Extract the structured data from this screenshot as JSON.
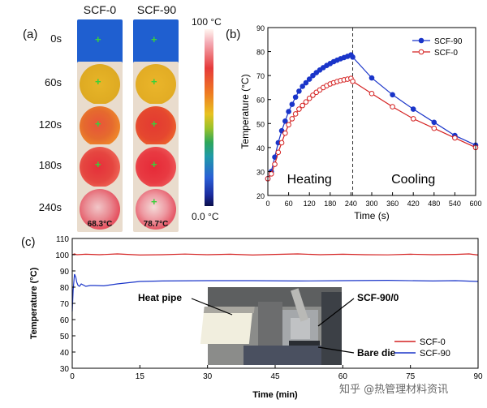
{
  "panel_a": {
    "label": "(a)",
    "columns": [
      "SCF-0",
      "SCF-90"
    ],
    "rows": [
      "0s",
      "60s",
      "120s",
      "180s",
      "240s"
    ],
    "final_temps": [
      "68.3°C",
      "78.7°C"
    ],
    "colorbar": {
      "max_label": "100 °C",
      "min_label": "0.0 °C"
    }
  },
  "chart_data": [
    {
      "id": "b",
      "panel_label": "(b)",
      "type": "line",
      "xlabel": "Time (s)",
      "ylabel": "Temperature (°C)",
      "xlim": [
        0,
        600
      ],
      "ylim": [
        20,
        90
      ],
      "xticks": [
        0,
        60,
        120,
        180,
        240,
        300,
        360,
        420,
        480,
        540,
        600
      ],
      "yticks": [
        20,
        30,
        40,
        50,
        60,
        70,
        80,
        90
      ],
      "legend": "top-right",
      "phase_divider_x": 245,
      "phase_labels": [
        "Heating",
        "Cooling"
      ],
      "series": [
        {
          "name": "SCF-90",
          "color": "#1a35c9",
          "marker": "filled",
          "x": [
            0,
            10,
            20,
            30,
            40,
            50,
            60,
            70,
            80,
            90,
            100,
            110,
            120,
            130,
            140,
            150,
            160,
            170,
            180,
            190,
            200,
            210,
            220,
            230,
            240,
            245,
            300,
            360,
            420,
            480,
            540,
            600
          ],
          "y": [
            27,
            30,
            36,
            42,
            47,
            51,
            55,
            58,
            61,
            63.5,
            65.5,
            67,
            68.5,
            70,
            71.2,
            72.3,
            73.3,
            74.2,
            75,
            75.8,
            76.4,
            77,
            77.5,
            78,
            78.6,
            77.7,
            69,
            62,
            56,
            50.5,
            45,
            41
          ]
        },
        {
          "name": "SCF-0",
          "color": "#d42020",
          "marker": "open",
          "x": [
            0,
            10,
            20,
            30,
            40,
            50,
            60,
            70,
            80,
            90,
            100,
            110,
            120,
            130,
            140,
            150,
            160,
            170,
            180,
            190,
            200,
            210,
            220,
            230,
            240,
            245,
            300,
            360,
            420,
            480,
            540,
            600
          ],
          "y": [
            27,
            29,
            33,
            38,
            42,
            46,
            49.5,
            52,
            54,
            56,
            57.5,
            59,
            60.5,
            61.8,
            63,
            64,
            65,
            65.8,
            66.5,
            67,
            67.5,
            67.9,
            68.2,
            68.5,
            68.8,
            67.6,
            62.5,
            57,
            52,
            48,
            44,
            40
          ]
        }
      ]
    },
    {
      "id": "c",
      "panel_label": "(c)",
      "type": "line",
      "xlabel": "Time (min)",
      "ylabel": "Temperature (°C)",
      "xlim": [
        0,
        90
      ],
      "ylim": [
        30,
        110
      ],
      "xticks": [
        0,
        15,
        30,
        45,
        60,
        75,
        90
      ],
      "yticks": [
        30,
        40,
        50,
        60,
        70,
        80,
        90,
        100,
        110
      ],
      "legend": "bottom-right",
      "series": [
        {
          "name": "SCF-0",
          "color": "#d42020",
          "x": [
            0,
            0.5,
            1,
            3,
            6,
            10,
            15,
            20,
            25,
            30,
            35,
            40,
            45,
            50,
            55,
            60,
            65,
            70,
            75,
            80,
            85,
            88,
            90
          ],
          "y": [
            100,
            100.5,
            100,
            100.3,
            100,
            100.5,
            99.8,
            100,
            100.4,
            100,
            100.3,
            99.8,
            100.2,
            100.5,
            100,
            100.3,
            100,
            99.9,
            100.3,
            100,
            100.2,
            100.5,
            99.8
          ]
        },
        {
          "name": "SCF-90",
          "color": "#1a35c9",
          "x": [
            0,
            0.2,
            0.5,
            0.8,
            1,
            1.3,
            1.6,
            2,
            3,
            4,
            5,
            7,
            10,
            15,
            20,
            30,
            40,
            50,
            60,
            70,
            80,
            85,
            90
          ],
          "y": [
            65,
            78,
            88,
            86,
            83,
            81,
            80.5,
            82,
            80.5,
            81,
            81,
            80.8,
            82,
            83.5,
            83.8,
            84,
            84,
            83.8,
            84,
            84.2,
            83.8,
            84,
            83.5
          ]
        }
      ],
      "photo_annotations": [
        "Heat pipe",
        "SCF-90/0",
        "Bare die"
      ]
    }
  ],
  "watermark": "知乎 @热管理材料资讯"
}
